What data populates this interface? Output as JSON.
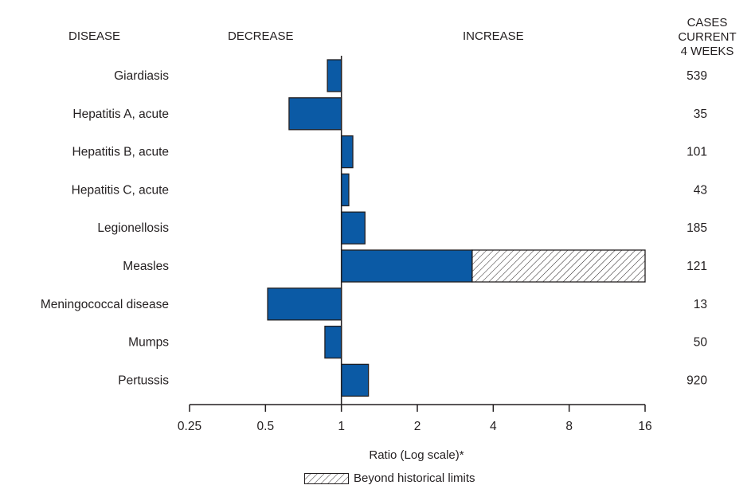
{
  "headers": {
    "disease": "DISEASE",
    "decrease": "DECREASE",
    "increase": "INCREASE",
    "cases_line1": "CASES CURRENT",
    "cases_line2": "4 WEEKS"
  },
  "legend_label": "Beyond historical limits",
  "colors": {
    "bar": "#0b5aa5",
    "bar_stroke": "#231f20",
    "hatch": "#231f20"
  },
  "chart_data": {
    "type": "bar",
    "orientation": "horizontal",
    "log_scale": true,
    "xlabel": "Ratio (Log scale)*",
    "xlim": [
      0.25,
      16
    ],
    "xticks": [
      0.25,
      0.5,
      1,
      2,
      4,
      8,
      16
    ],
    "xtick_labels": [
      "0.25",
      "0.5",
      "1",
      "2",
      "4",
      "8",
      "16"
    ],
    "baseline": 1,
    "categories": [
      "Giardiasis",
      "Hepatitis A, acute",
      "Hepatitis B, acute",
      "Hepatitis C, acute",
      "Legionellosis",
      "Measles",
      "Meningococcal disease",
      "Mumps",
      "Pertussis"
    ],
    "values": [
      0.88,
      0.62,
      1.11,
      1.07,
      1.24,
      3.3,
      0.51,
      0.86,
      1.28
    ],
    "beyond_historical_limits": [
      null,
      null,
      null,
      null,
      null,
      16,
      null,
      null,
      null
    ],
    "cases_current_4_weeks": [
      "539",
      "35",
      "101",
      "43",
      "185",
      "121",
      "13",
      "50",
      "920"
    ]
  }
}
